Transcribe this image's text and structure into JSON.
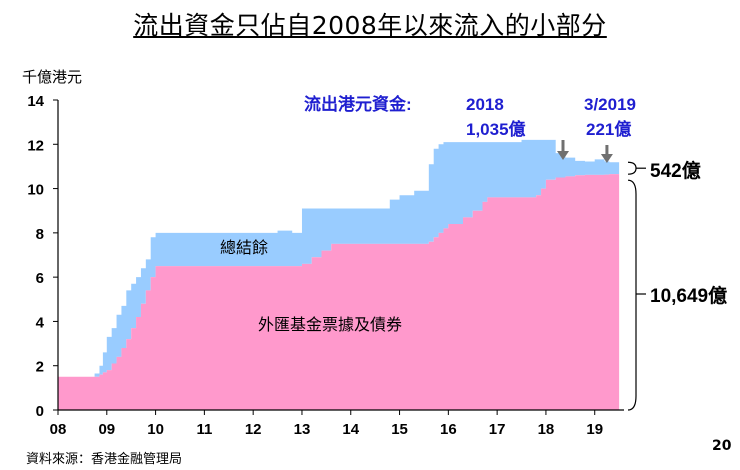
{
  "title": "流出資金只佔自2008年以來流入的小部分",
  "unit_label": "千億港元",
  "source_note": "資料來源：香港金融管理局",
  "page_number": "20",
  "colors": {
    "aggregate_balance": "#99ccff",
    "efbn": "#ff99cc",
    "annotation_text": "#1f1fd0",
    "arrow": "#707070"
  },
  "annotations": {
    "outflow_label": "流出港元資金:",
    "outflow_2018_year": "2018",
    "outflow_2018_value": "1,035億",
    "outflow_2019_date": "3/2019",
    "outflow_2019_value": "221億",
    "label_aggregate_balance": "總結餘",
    "label_efbn": "外匯基金票據及債券",
    "bracket_top_value": "542億",
    "bracket_bottom_value": "10,649億"
  },
  "chart_data": {
    "type": "area",
    "stacked": true,
    "x_tick_labels": [
      "08",
      "09",
      "10",
      "11",
      "12",
      "13",
      "14",
      "15",
      "16",
      "17",
      "18",
      "19"
    ],
    "ylim": [
      0,
      14
    ],
    "yticks": [
      0,
      2,
      4,
      6,
      8,
      10,
      12,
      14
    ],
    "grid": false,
    "x": [
      2008.0,
      2008.75,
      2008.85,
      2008.92,
      2009.0,
      2009.1,
      2009.2,
      2009.3,
      2009.4,
      2009.5,
      2009.6,
      2009.7,
      2009.8,
      2009.9,
      2010.0,
      2010.2,
      2010.4,
      2010.6,
      2010.8,
      2011.0,
      2011.5,
      2012.0,
      2012.5,
      2012.8,
      2013.0,
      2013.2,
      2013.4,
      2013.6,
      2013.8,
      2014.0,
      2014.5,
      2014.8,
      2015.0,
      2015.3,
      2015.6,
      2015.7,
      2015.8,
      2015.9,
      2016.0,
      2016.3,
      2016.5,
      2016.7,
      2016.8,
      2017.0,
      2017.5,
      2017.8,
      2017.9,
      2018.0,
      2018.2,
      2018.4,
      2018.6,
      2018.8,
      2019.0,
      2019.2,
      2019.3
    ],
    "series": [
      {
        "name": "外匯基金票據及債券",
        "values": [
          1.5,
          1.5,
          1.6,
          1.7,
          1.8,
          2.1,
          2.4,
          2.8,
          3.2,
          3.7,
          4.2,
          4.8,
          5.4,
          6.0,
          6.5,
          6.5,
          6.5,
          6.5,
          6.5,
          6.5,
          6.5,
          6.5,
          6.5,
          6.5,
          6.6,
          6.9,
          7.2,
          7.5,
          7.5,
          7.5,
          7.5,
          7.5,
          7.5,
          7.5,
          7.6,
          7.8,
          8.0,
          8.2,
          8.4,
          8.7,
          9.0,
          9.4,
          9.6,
          9.6,
          9.6,
          9.7,
          10.0,
          10.4,
          10.5,
          10.55,
          10.6,
          10.62,
          10.62,
          10.63,
          10.65
        ]
      },
      {
        "name": "總結餘",
        "values": [
          0.0,
          0.15,
          0.4,
          0.9,
          1.5,
          1.6,
          1.9,
          1.9,
          2.2,
          2.0,
          1.8,
          1.6,
          1.4,
          1.8,
          1.5,
          1.5,
          1.5,
          1.5,
          1.5,
          1.5,
          1.5,
          1.5,
          1.6,
          1.5,
          2.5,
          2.2,
          1.9,
          1.6,
          1.6,
          1.6,
          1.6,
          2.0,
          2.2,
          2.4,
          3.5,
          4.0,
          4.0,
          3.9,
          3.7,
          3.4,
          3.1,
          2.7,
          2.5,
          2.5,
          2.6,
          2.5,
          2.2,
          1.8,
          1.1,
          0.85,
          0.65,
          0.6,
          0.7,
          0.6,
          0.54
        ]
      }
    ]
  }
}
